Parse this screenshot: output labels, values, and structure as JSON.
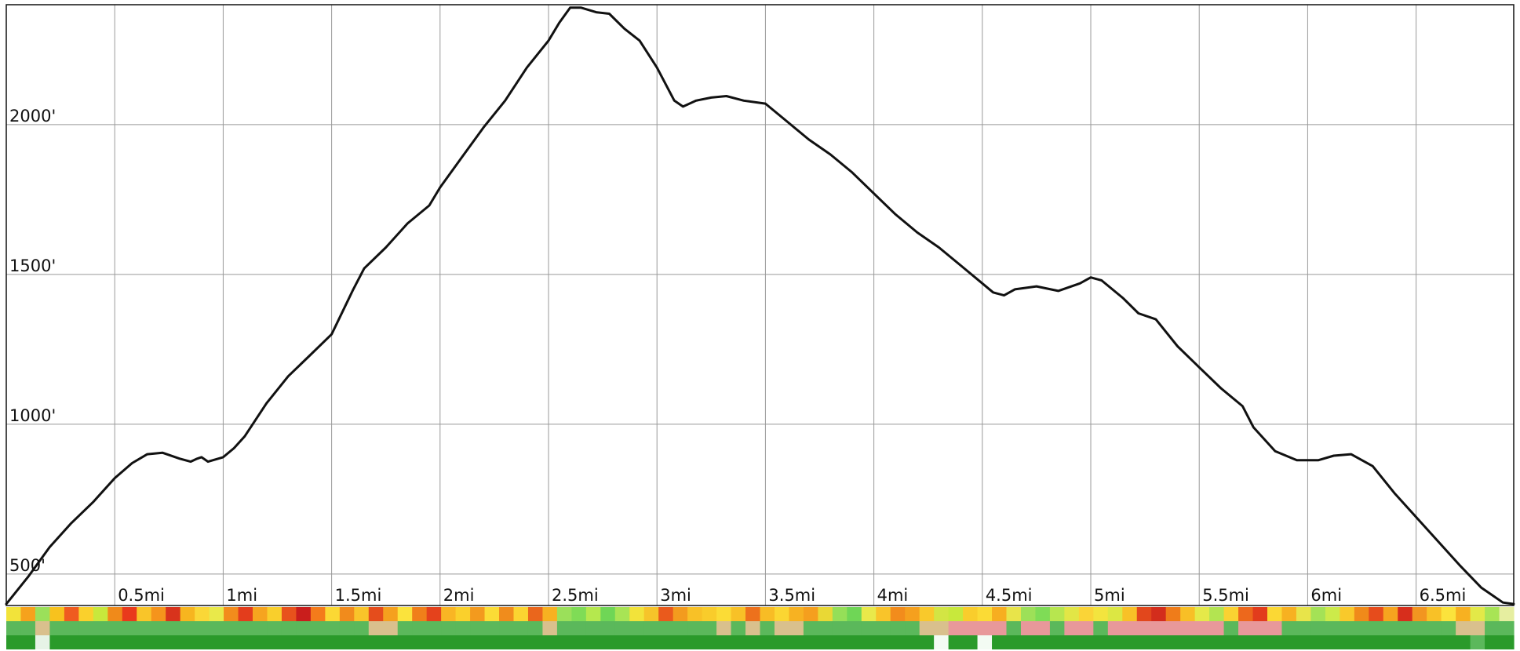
{
  "chart_data": {
    "type": "line",
    "title": "",
    "xlabel": "",
    "ylabel": "",
    "x_unit": "mi",
    "y_unit": "ft",
    "xlim": [
      0,
      6.95
    ],
    "ylim": [
      395,
      2400
    ],
    "x_ticks": [
      {
        "value": 0.5,
        "label": "0.5mi"
      },
      {
        "value": 1.0,
        "label": "1mi"
      },
      {
        "value": 1.5,
        "label": "1.5mi"
      },
      {
        "value": 2.0,
        "label": "2mi"
      },
      {
        "value": 2.5,
        "label": "2.5mi"
      },
      {
        "value": 3.0,
        "label": "3mi"
      },
      {
        "value": 3.5,
        "label": "3.5mi"
      },
      {
        "value": 4.0,
        "label": "4mi"
      },
      {
        "value": 4.5,
        "label": "4.5mi"
      },
      {
        "value": 5.0,
        "label": "5mi"
      },
      {
        "value": 5.5,
        "label": "5.5mi"
      },
      {
        "value": 6.0,
        "label": "6mi"
      },
      {
        "value": 6.5,
        "label": "6.5mi"
      }
    ],
    "y_ticks": [
      {
        "value": 500,
        "label": "500'"
      },
      {
        "value": 1000,
        "label": "1000'"
      },
      {
        "value": 1500,
        "label": "1500'"
      },
      {
        "value": 2000,
        "label": "2000'"
      }
    ],
    "grid": true,
    "legend": "none",
    "series": [
      {
        "color": "#111111",
        "points": [
          [
            0.0,
            400
          ],
          [
            0.1,
            490
          ],
          [
            0.2,
            590
          ],
          [
            0.3,
            670
          ],
          [
            0.4,
            740
          ],
          [
            0.5,
            820
          ],
          [
            0.58,
            870
          ],
          [
            0.65,
            900
          ],
          [
            0.72,
            905
          ],
          [
            0.8,
            885
          ],
          [
            0.85,
            875
          ],
          [
            0.88,
            885
          ],
          [
            0.9,
            890
          ],
          [
            0.93,
            875
          ],
          [
            1.0,
            890
          ],
          [
            1.05,
            920
          ],
          [
            1.1,
            960
          ],
          [
            1.2,
            1070
          ],
          [
            1.3,
            1160
          ],
          [
            1.4,
            1230
          ],
          [
            1.5,
            1300
          ],
          [
            1.6,
            1450
          ],
          [
            1.65,
            1520
          ],
          [
            1.75,
            1590
          ],
          [
            1.85,
            1670
          ],
          [
            1.95,
            1730
          ],
          [
            2.0,
            1790
          ],
          [
            2.1,
            1890
          ],
          [
            2.2,
            1990
          ],
          [
            2.3,
            2080
          ],
          [
            2.4,
            2190
          ],
          [
            2.5,
            2280
          ],
          [
            2.55,
            2340
          ],
          [
            2.6,
            2390
          ],
          [
            2.65,
            2390
          ],
          [
            2.72,
            2375
          ],
          [
            2.78,
            2370
          ],
          [
            2.85,
            2320
          ],
          [
            2.92,
            2280
          ],
          [
            3.0,
            2190
          ],
          [
            3.08,
            2080
          ],
          [
            3.12,
            2060
          ],
          [
            3.18,
            2080
          ],
          [
            3.25,
            2090
          ],
          [
            3.32,
            2095
          ],
          [
            3.4,
            2080
          ],
          [
            3.5,
            2070
          ],
          [
            3.6,
            2010
          ],
          [
            3.7,
            1950
          ],
          [
            3.8,
            1900
          ],
          [
            3.9,
            1840
          ],
          [
            4.0,
            1770
          ],
          [
            4.1,
            1700
          ],
          [
            4.2,
            1640
          ],
          [
            4.3,
            1590
          ],
          [
            4.4,
            1530
          ],
          [
            4.5,
            1470
          ],
          [
            4.55,
            1440
          ],
          [
            4.6,
            1430
          ],
          [
            4.65,
            1450
          ],
          [
            4.75,
            1460
          ],
          [
            4.85,
            1445
          ],
          [
            4.95,
            1470
          ],
          [
            5.0,
            1490
          ],
          [
            5.05,
            1480
          ],
          [
            5.15,
            1420
          ],
          [
            5.22,
            1370
          ],
          [
            5.3,
            1350
          ],
          [
            5.4,
            1260
          ],
          [
            5.5,
            1190
          ],
          [
            5.6,
            1120
          ],
          [
            5.7,
            1060
          ],
          [
            5.75,
            990
          ],
          [
            5.85,
            910
          ],
          [
            5.95,
            880
          ],
          [
            6.05,
            880
          ],
          [
            6.12,
            895
          ],
          [
            6.2,
            900
          ],
          [
            6.3,
            860
          ],
          [
            6.4,
            770
          ],
          [
            6.5,
            690
          ],
          [
            6.6,
            610
          ],
          [
            6.7,
            530
          ],
          [
            6.8,
            455
          ],
          [
            6.9,
            405
          ],
          [
            6.95,
            400
          ]
        ]
      }
    ],
    "grade_strip": [
      "#f2e33a",
      "#f6a21c",
      "#9be05a",
      "#f7c21e",
      "#ef5b20",
      "#fad02c",
      "#c8e83c",
      "#f08a1a",
      "#e93a1c",
      "#f9c529",
      "#f5941c",
      "#d8331c",
      "#f7b51f",
      "#fad737",
      "#e9e94a",
      "#f28c1c",
      "#e33d1c",
      "#f6a41f",
      "#f9cf2c",
      "#e8521c",
      "#c91e1c",
      "#f47b1b",
      "#fbd834",
      "#f18b1c",
      "#f9c42a",
      "#e54d1c",
      "#f5a01e",
      "#fbe33c",
      "#f07f1a",
      "#e4421c",
      "#f9b524",
      "#fad02c",
      "#f39a1e",
      "#fbdc36",
      "#f08c1c",
      "#fbd431",
      "#ea661c",
      "#f7b121",
      "#9be05a",
      "#7fdc56",
      "#b5e84e",
      "#6fd656",
      "#a8e455",
      "#f2e33a",
      "#f6c42a",
      "#ea5a1c",
      "#f39b1e",
      "#f8c127",
      "#f9cc2b",
      "#fbdc36",
      "#f8c127",
      "#ed711c",
      "#f8bc25",
      "#fbd632",
      "#f7b222",
      "#f59f1e",
      "#e9d835",
      "#95df58",
      "#6fd656",
      "#e9e94a",
      "#f9c42a",
      "#f28c1c",
      "#f5a01e",
      "#f9c92b",
      "#d3e544",
      "#c8e83c",
      "#f9cd2c",
      "#fbdb35",
      "#f7ae20",
      "#e8e44a",
      "#9de058",
      "#7fdc56",
      "#b7e64f",
      "#e2e646",
      "#fad437",
      "#f3e43e",
      "#dce743",
      "#f8c127",
      "#e2471c",
      "#d32d1c",
      "#ef7c1a",
      "#f8bf26",
      "#e5e949",
      "#b3e451",
      "#fad232",
      "#ed681c",
      "#e23c1c",
      "#fbd834",
      "#f7b121",
      "#e8e44a",
      "#a4e256",
      "#ccea4a",
      "#f9c92b",
      "#f08a1a",
      "#e64c1c",
      "#f6a41f",
      "#d72e1c",
      "#f29520",
      "#f8c127",
      "#fbe33c",
      "#f7b121",
      "#e3e948",
      "#a8e455",
      "#e6eea0"
    ],
    "surface_strip": [
      "#5bb85b",
      "#5bb85b",
      "#d9c08d",
      "#5bb85b",
      "#5bb85b",
      "#5bb85b",
      "#5bb85b",
      "#5bb85b",
      "#5bb85b",
      "#5bb85b",
      "#5bb85b",
      "#5bb85b",
      "#5bb85b",
      "#5bb85b",
      "#5bb85b",
      "#5bb85b",
      "#5bb85b",
      "#5bb85b",
      "#5bb85b",
      "#5bb85b",
      "#5bb85b",
      "#5bb85b",
      "#5bb85b",
      "#5bb85b",
      "#5bb85b",
      "#d9c08d",
      "#d9c08d",
      "#5bb85b",
      "#5bb85b",
      "#5bb85b",
      "#5bb85b",
      "#5bb85b",
      "#5bb85b",
      "#5bb85b",
      "#5bb85b",
      "#5bb85b",
      "#5bb85b",
      "#d9c08d",
      "#5bb85b",
      "#5bb85b",
      "#5bb85b",
      "#5bb85b",
      "#5bb85b",
      "#5bb85b",
      "#5bb85b",
      "#5bb85b",
      "#5bb85b",
      "#5bb85b",
      "#5bb85b",
      "#d9c08d",
      "#5bb85b",
      "#d9c08d",
      "#5bb85b",
      "#d9c08d",
      "#d9c08d",
      "#5bb85b",
      "#5bb85b",
      "#5bb85b",
      "#5bb85b",
      "#5bb85b",
      "#5bb85b",
      "#5bb85b",
      "#5bb85b",
      "#d9c08d",
      "#d9c08d",
      "#e8989a",
      "#e8989a",
      "#e8989a",
      "#e8989a",
      "#5bb85b",
      "#e8989a",
      "#e8989a",
      "#5bb85b",
      "#e8989a",
      "#e8989a",
      "#5bb85b",
      "#e8989a",
      "#e8989a",
      "#e8989a",
      "#e8989a",
      "#e8989a",
      "#e8989a",
      "#e8989a",
      "#e8989a",
      "#5bb85b",
      "#e8989a",
      "#e8989a",
      "#e8989a",
      "#5bb85b",
      "#5bb85b",
      "#5bb85b",
      "#5bb85b",
      "#5bb85b",
      "#5bb85b",
      "#5bb85b",
      "#5bb85b",
      "#5bb85b",
      "#5bb85b",
      "#5bb85b",
      "#5bb85b",
      "#d9c08d",
      "#d9c08d",
      "#5bb85b",
      "#5bb85b"
    ],
    "shade_strip": [
      "#2a9a2a",
      "#2a9a2a",
      "#e6f3e6",
      "#2a9a2a",
      "#2a9a2a",
      "#2a9a2a",
      "#2a9a2a",
      "#2a9a2a",
      "#2a9a2a",
      "#2a9a2a",
      "#2a9a2a",
      "#2a9a2a",
      "#2a9a2a",
      "#2a9a2a",
      "#2a9a2a",
      "#2a9a2a",
      "#2a9a2a",
      "#2a9a2a",
      "#2a9a2a",
      "#2a9a2a",
      "#2a9a2a",
      "#2a9a2a",
      "#2a9a2a",
      "#2a9a2a",
      "#2a9a2a",
      "#2a9a2a",
      "#2a9a2a",
      "#2a9a2a",
      "#2a9a2a",
      "#2a9a2a",
      "#2a9a2a",
      "#2a9a2a",
      "#2a9a2a",
      "#2a9a2a",
      "#2a9a2a",
      "#2a9a2a",
      "#2a9a2a",
      "#2a9a2a",
      "#2a9a2a",
      "#2a9a2a",
      "#2a9a2a",
      "#2a9a2a",
      "#2a9a2a",
      "#2a9a2a",
      "#2a9a2a",
      "#2a9a2a",
      "#2a9a2a",
      "#2a9a2a",
      "#2a9a2a",
      "#2a9a2a",
      "#2a9a2a",
      "#2a9a2a",
      "#2a9a2a",
      "#2a9a2a",
      "#2a9a2a",
      "#2a9a2a",
      "#2a9a2a",
      "#2a9a2a",
      "#2a9a2a",
      "#2a9a2a",
      "#2a9a2a",
      "#2a9a2a",
      "#2a9a2a",
      "#2a9a2a",
      "#f3fbf3",
      "#2a9a2a",
      "#2a9a2a",
      "#f3fbf3",
      "#2a9a2a",
      "#2a9a2a",
      "#2a9a2a",
      "#2a9a2a",
      "#2a9a2a",
      "#2a9a2a",
      "#2a9a2a",
      "#2a9a2a",
      "#2a9a2a",
      "#2a9a2a",
      "#2a9a2a",
      "#2a9a2a",
      "#2a9a2a",
      "#2a9a2a",
      "#2a9a2a",
      "#2a9a2a",
      "#2a9a2a",
      "#2a9a2a",
      "#2a9a2a",
      "#2a9a2a",
      "#2a9a2a",
      "#2a9a2a",
      "#2a9a2a",
      "#2a9a2a",
      "#2a9a2a",
      "#2a9a2a",
      "#2a9a2a",
      "#2a9a2a",
      "#2a9a2a",
      "#2a9a2a",
      "#2a9a2a",
      "#2a9a2a",
      "#2a9a2a",
      "#5bb85b",
      "#2a9a2a",
      "#2a9a2a"
    ],
    "colors": {
      "line": "#111111",
      "grid": "#999999",
      "frame": "#111111",
      "background": "#ffffff"
    }
  }
}
